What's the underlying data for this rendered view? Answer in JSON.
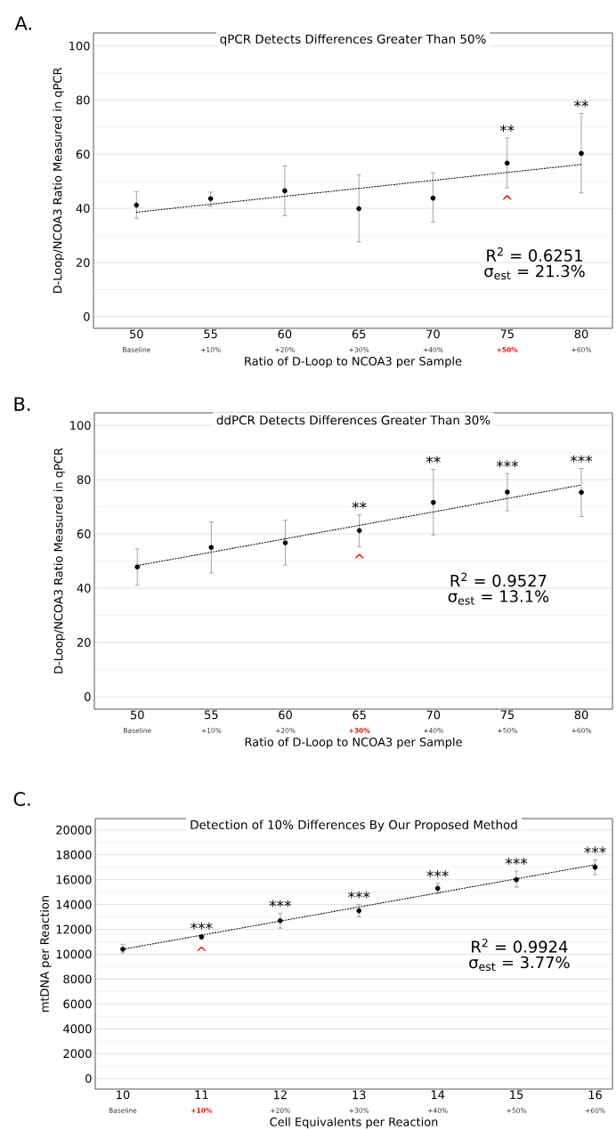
{
  "chart_data": [
    {
      "type": "scatter",
      "title": "qPCR Detects Differences Greater Than 50%",
      "xlabel": "Ratio of D-Loop to NCOA3 per Sample",
      "ylabel": "D-Loop/NCOA3 Ratio Measured in qPCR",
      "xlim": [
        47.1,
        82.1
      ],
      "ylim": [
        -4.3,
        104.8
      ],
      "xticks": [
        50,
        55,
        60,
        65,
        70,
        75,
        80
      ],
      "yticks": [
        0,
        20,
        40,
        60,
        80,
        100
      ],
      "grid": "y",
      "series": [
        {
          "color": "#000000",
          "marker": "circle",
          "x": [
            50,
            55,
            60,
            65,
            70,
            75,
            80
          ],
          "values": [
            41.2,
            43.6,
            46.5,
            39.9,
            43.8,
            56.7,
            60.3
          ],
          "errors": [
            [
              36.3,
              46.2
            ],
            [
              40.8,
              46.0
            ],
            [
              37.3,
              55.7
            ],
            [
              27.6,
              52.4
            ],
            [
              34.9,
              53.1
            ],
            [
              47.6,
              66.0
            ],
            [
              45.7,
              75.1
            ]
          ]
        },
        {
          "type": "line",
          "color": "#000000",
          "line_style": "dotted",
          "marker": "none",
          "x": [
            50,
            80
          ],
          "values": [
            38.6,
            56.2
          ]
        }
      ],
      "annotations": [
        "A.",
        "R$^{2}$ = 0.6251",
        "σ$_{est}$ = 21.3%",
        "**",
        "**",
        "^",
        "Baseline",
        "+10%",
        "+20%",
        "+30%",
        "+40%",
        "+50%",
        "+60%"
      ]
    },
    {
      "type": "scatter",
      "title": "ddPCR Detects Differences Greater Than 30%",
      "xlabel": "Ratio of D-Loop to NCOA3 per Sample",
      "ylabel": "D-Loop/NCOA3 Ratio Measured in qPCR",
      "xlim": [
        47.1,
        82.1
      ],
      "ylim": [
        -4.6,
        104.6
      ],
      "xticks": [
        50,
        55,
        60,
        65,
        70,
        75,
        80
      ],
      "yticks": [
        0,
        20,
        40,
        60,
        80,
        100
      ],
      "grid": "y",
      "series": [
        {
          "color": "#000000",
          "marker": "circle",
          "x": [
            50,
            55,
            60,
            65,
            70,
            75,
            80
          ],
          "values": [
            47.8,
            55.0,
            56.7,
            61.2,
            71.6,
            75.4,
            75.3
          ],
          "errors": [
            [
              41.0,
              54.4
            ],
            [
              45.6,
              64.4
            ],
            [
              48.5,
              65.0
            ],
            [
              55.3,
              67.0
            ],
            [
              59.6,
              83.8
            ],
            [
              68.5,
              82.2
            ],
            [
              66.4,
              84.1
            ]
          ]
        },
        {
          "type": "line",
          "color": "#000000",
          "line_style": "dotted",
          "marker": "none",
          "x": [
            50,
            80
          ],
          "values": [
            48.3,
            78.0
          ]
        }
      ],
      "annotations": [
        "B.",
        "R$^{2}$ = 0.9527",
        "σ$_{est}$ = 13.1%",
        "**",
        "**",
        "***",
        "***",
        "^",
        "Baseline",
        "+10%",
        "+20%",
        "+30%",
        "+40%",
        "+50%",
        "+60%"
      ]
    },
    {
      "type": "scatter",
      "title": "Detection of 10% Differences By Our Proposed Method",
      "xlabel": "Cell Equivalents per Reaction",
      "ylabel": "mtDNA per Reaction",
      "xlim": [
        9.65,
        16.22
      ],
      "ylim": [
        -850,
        20913
      ],
      "xticks": [
        10,
        11,
        12,
        13,
        14,
        15,
        16
      ],
      "yticks": [
        0,
        2000,
        4000,
        6000,
        8000,
        10000,
        12000,
        14000,
        16000,
        18000,
        20000
      ],
      "grid": "y",
      "series": [
        {
          "color": "#000000",
          "marker": "circle",
          "x": [
            10,
            11,
            12,
            13,
            14,
            15,
            16
          ],
          "values": [
            10400,
            11400,
            12700,
            13500,
            15300,
            16000,
            17000
          ],
          "errors": [
            [
              10100,
              10800
            ],
            [
              11200,
              11500
            ],
            [
              12100,
              13300
            ],
            [
              13000,
              14000
            ],
            [
              14900,
              15700
            ],
            [
              15400,
              16700
            ],
            [
              16400,
              17600
            ]
          ]
        },
        {
          "type": "line",
          "color": "#000000",
          "line_style": "dotted",
          "marker": "none",
          "x": [
            10,
            16
          ],
          "values": [
            10400,
            17200
          ]
        }
      ],
      "annotations": [
        "C.",
        "R$^{2}$ = 0.9924",
        "σ$_{est}$ = 3.77%",
        "***",
        "***",
        "***",
        "***",
        "***",
        "***",
        "^",
        "Baseline",
        "+10%",
        "+20%",
        "+30%",
        "+40%",
        "+50%",
        "+60%"
      ]
    }
  ]
}
